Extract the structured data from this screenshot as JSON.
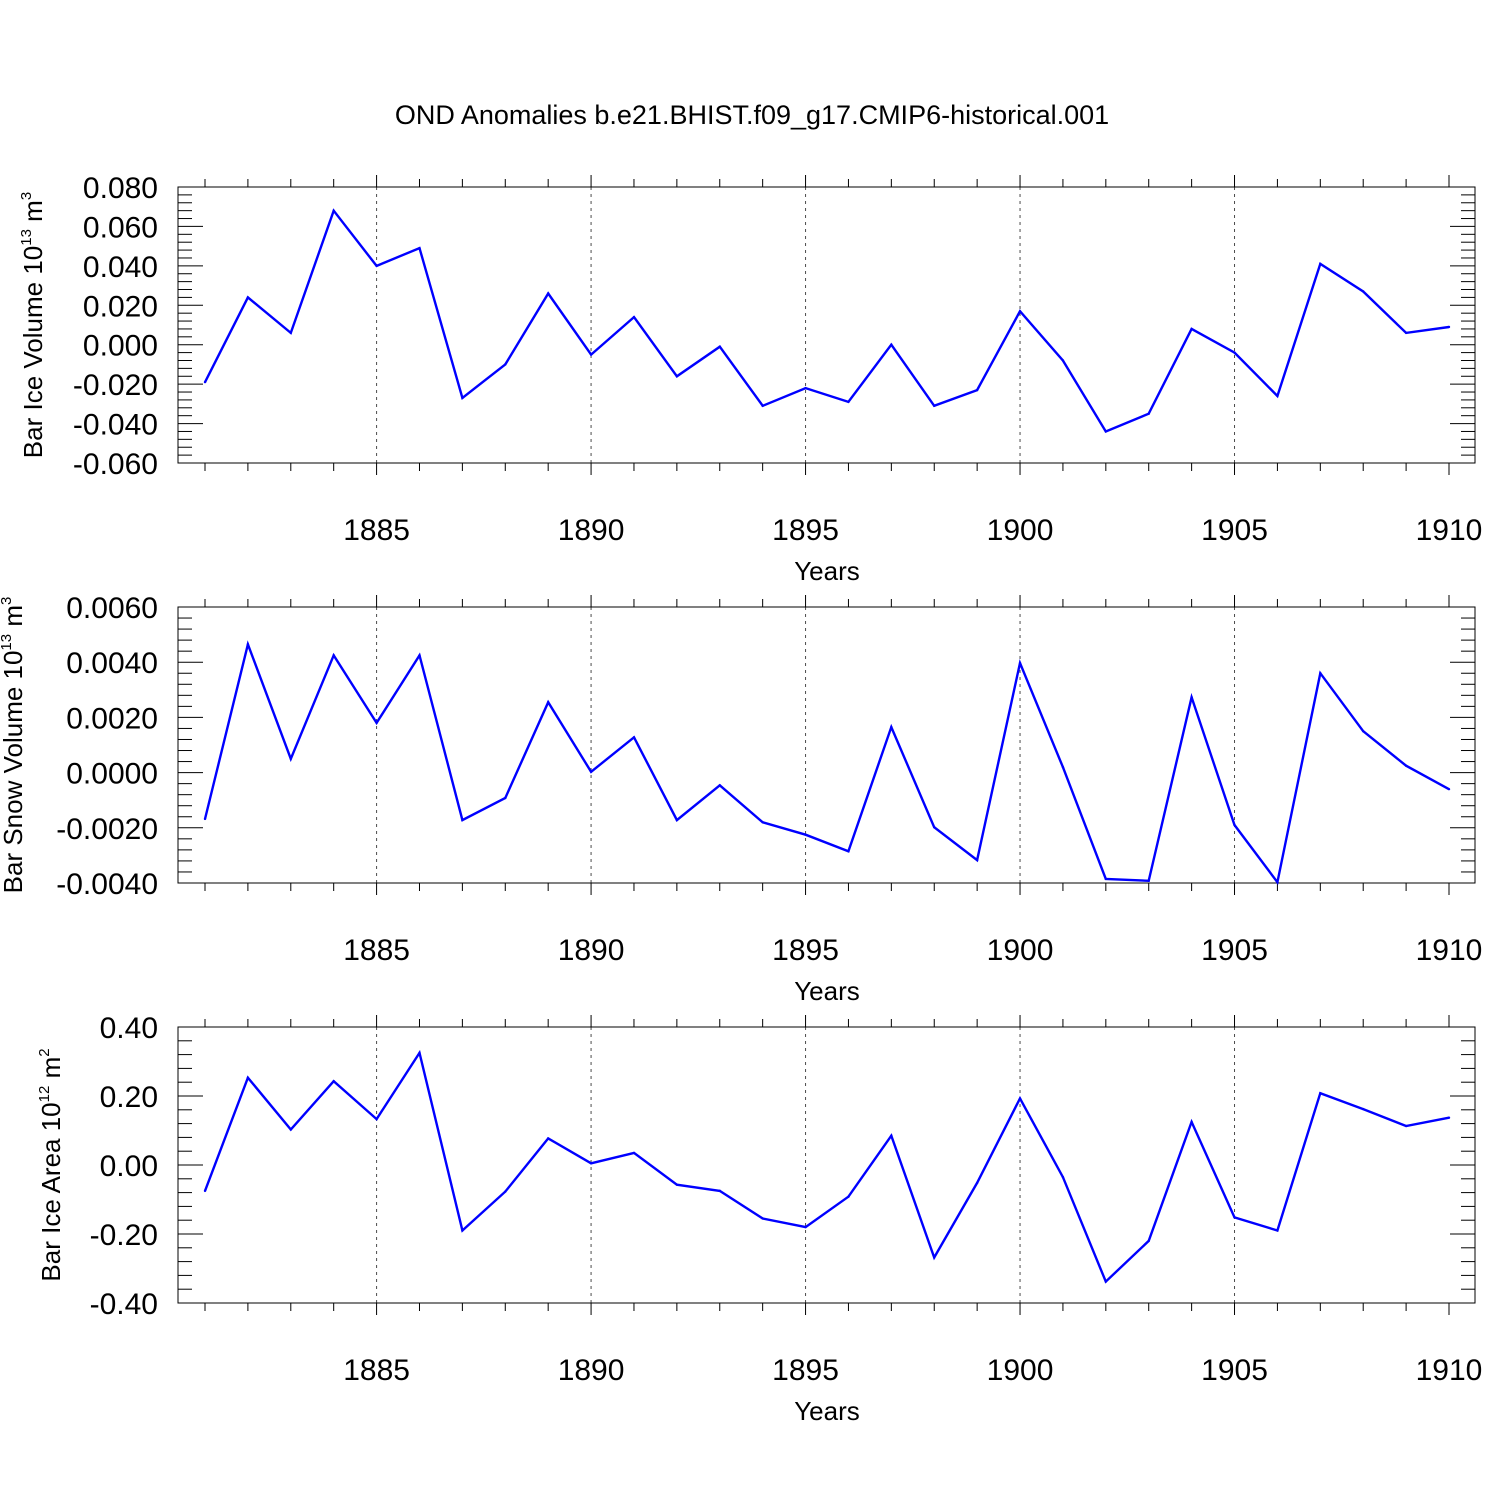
{
  "title": "OND Anomalies b.e21.BHIST.f09_g17.CMIP6-historical.001",
  "colors": {
    "line": "#0000ff",
    "axis": "#000000",
    "background": "#ffffff"
  },
  "chart_data": [
    {
      "type": "line",
      "ylabel": "Bar Ice Volume 10",
      "ylabel_sup": "13",
      "ylabel_unit": " m",
      "ylabel_unit_sup": "3",
      "xlabel": "Years",
      "xlim": [
        1881,
        1910
      ],
      "ylim": [
        -0.06,
        0.08
      ],
      "yticks": [
        -0.06,
        -0.04,
        -0.02,
        0.0,
        0.02,
        0.04,
        0.06,
        0.08
      ],
      "ytick_labels": [
        "-0.060",
        "-0.040",
        "-0.020",
        "0.000",
        "0.020",
        "0.040",
        "0.060",
        "0.080"
      ],
      "xticks": [
        1885,
        1890,
        1895,
        1900,
        1905,
        1910
      ],
      "xtick_labels": [
        "1885",
        "1890",
        "1895",
        "1900",
        "1905",
        "1910"
      ],
      "grid": "vertical dashed at major x ticks",
      "x": [
        1881,
        1882,
        1883,
        1884,
        1885,
        1886,
        1887,
        1888,
        1889,
        1890,
        1891,
        1892,
        1893,
        1894,
        1895,
        1896,
        1897,
        1898,
        1899,
        1900,
        1901,
        1902,
        1903,
        1904,
        1905,
        1906,
        1907,
        1908,
        1909,
        1910
      ],
      "y": [
        -0.019,
        0.024,
        0.006,
        0.068,
        0.04,
        0.049,
        -0.027,
        -0.01,
        0.026,
        -0.005,
        0.014,
        -0.016,
        -0.001,
        -0.031,
        -0.022,
        -0.029,
        0.0,
        -0.031,
        -0.023,
        0.017,
        -0.008,
        -0.044,
        -0.035,
        0.008,
        -0.004,
        -0.026,
        0.041,
        0.027,
        0.006,
        0.009
      ]
    },
    {
      "type": "line",
      "ylabel": "Bar Snow Volume 10",
      "ylabel_sup": "13",
      "ylabel_unit": " m",
      "ylabel_unit_sup": "3",
      "xlabel": "Years",
      "xlim": [
        1881,
        1910
      ],
      "ylim": [
        -0.004,
        0.006
      ],
      "yticks": [
        -0.004,
        -0.002,
        0.0,
        0.002,
        0.004,
        0.006
      ],
      "ytick_labels": [
        "-0.0040",
        "-0.0020",
        "0.0000",
        "0.0020",
        "0.0040",
        "0.0060"
      ],
      "xticks": [
        1885,
        1890,
        1895,
        1900,
        1905,
        1910
      ],
      "xtick_labels": [
        "1885",
        "1890",
        "1895",
        "1900",
        "1905",
        "1910"
      ],
      "grid": "vertical dashed at major x ticks",
      "x": [
        1881,
        1882,
        1883,
        1884,
        1885,
        1886,
        1887,
        1888,
        1889,
        1890,
        1891,
        1892,
        1893,
        1894,
        1895,
        1896,
        1897,
        1898,
        1899,
        1900,
        1901,
        1902,
        1903,
        1904,
        1905,
        1906,
        1907,
        1908,
        1909,
        1910
      ],
      "y": [
        -0.00168,
        0.00465,
        0.0005,
        0.00425,
        0.0018,
        0.00425,
        -0.00172,
        -0.00092,
        0.00255,
        3e-05,
        0.00128,
        -0.00172,
        -0.00046,
        -0.0018,
        -0.00225,
        -0.00285,
        0.00165,
        -0.00198,
        -0.00317,
        0.00397,
        0.0002,
        -0.00385,
        -0.00392,
        0.00273,
        -0.0019,
        -0.00397,
        0.0036,
        0.0015,
        0.00025,
        -0.0006
      ]
    },
    {
      "type": "line",
      "ylabel": "Bar Ice Area 10",
      "ylabel_sup": "12",
      "ylabel_unit": " m",
      "ylabel_unit_sup": "2",
      "xlabel": "Years",
      "xlim": [
        1881,
        1910
      ],
      "ylim": [
        -0.4,
        0.4
      ],
      "yticks": [
        -0.4,
        -0.2,
        0.0,
        0.2,
        0.4
      ],
      "ytick_labels": [
        "-0.40",
        "-0.20",
        "0.00",
        "0.20",
        "0.40"
      ],
      "xticks": [
        1885,
        1890,
        1895,
        1900,
        1905,
        1910
      ],
      "xtick_labels": [
        "1885",
        "1890",
        "1895",
        "1900",
        "1905",
        "1910"
      ],
      "grid": "vertical dashed at major x ticks",
      "x": [
        1881,
        1882,
        1883,
        1884,
        1885,
        1886,
        1887,
        1888,
        1889,
        1890,
        1891,
        1892,
        1893,
        1894,
        1895,
        1896,
        1897,
        1898,
        1899,
        1900,
        1901,
        1902,
        1903,
        1904,
        1905,
        1906,
        1907,
        1908,
        1909,
        1910
      ],
      "y": [
        -0.075,
        0.253,
        0.103,
        0.243,
        0.133,
        0.325,
        -0.19,
        -0.077,
        0.077,
        0.005,
        0.035,
        -0.057,
        -0.075,
        -0.155,
        -0.18,
        -0.092,
        0.085,
        -0.268,
        -0.052,
        0.193,
        -0.035,
        -0.338,
        -0.22,
        0.125,
        -0.152,
        -0.19,
        0.208,
        0.162,
        0.113,
        0.137
      ]
    }
  ]
}
